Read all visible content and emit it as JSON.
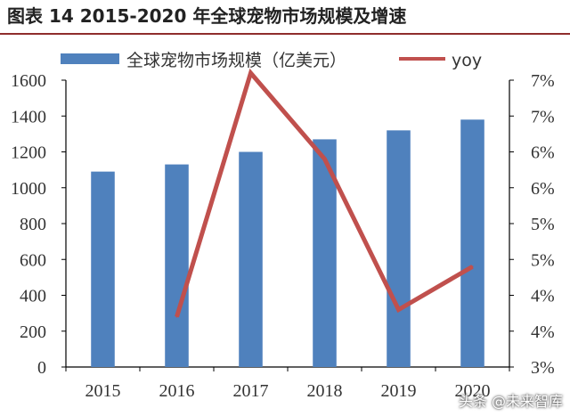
{
  "figure": {
    "title": "图表 14 2015-2020 年全球宠物市场规模及增速",
    "watermark": "头条 @未来智库"
  },
  "chart_data": {
    "type": "bar+line",
    "categories": [
      "2015",
      "2016",
      "2017",
      "2018",
      "2019",
      "2020"
    ],
    "series": [
      {
        "name": "全球宠物市场规模（亿美元）",
        "type": "bar",
        "axis": "left",
        "color": "#4f81bd",
        "values": [
          1090,
          1130,
          1200,
          1270,
          1320,
          1380
        ]
      },
      {
        "name": "yoy",
        "type": "line",
        "axis": "right",
        "color": "#c0504d",
        "values": [
          null,
          3.7,
          7.1,
          5.9,
          3.8,
          4.4
        ]
      }
    ],
    "y_left": {
      "min": 0,
      "max": 1600,
      "ticks": [
        "0",
        "200",
        "400",
        "600",
        "800",
        "1000",
        "1200",
        "1400",
        "1600"
      ]
    },
    "y_right": {
      "min": 3.0,
      "max": 7.0,
      "step": 0.5,
      "tick_labels": [
        "3%",
        "4%",
        "4%",
        "5%",
        "5%",
        "6%",
        "6%",
        "7%",
        "7%"
      ]
    },
    "legend": "top",
    "grid": false
  }
}
